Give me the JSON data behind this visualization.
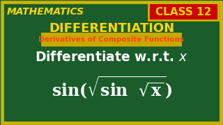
{
  "bg_color": "#1a5c2a",
  "border_color": "#c8b400",
  "title_math": "MATHEMATICS",
  "title_math_color": "#FFD700",
  "class_box_bg": "#cc0000",
  "class_box_text": "CLASS 12",
  "class_box_text_color": "#FFD700",
  "diff_title": "DIFFERENTIATION",
  "diff_title_color": "#FFD700",
  "subtitle": "Derivatives of Composite Functions",
  "subtitle_color": "#FF4500",
  "subtitle_bg": "#c8a800",
  "line1_color": "#ffffff",
  "line2_color": "#ffffff",
  "fig_w": 3.2,
  "fig_h": 1.8,
  "dpi": 100
}
